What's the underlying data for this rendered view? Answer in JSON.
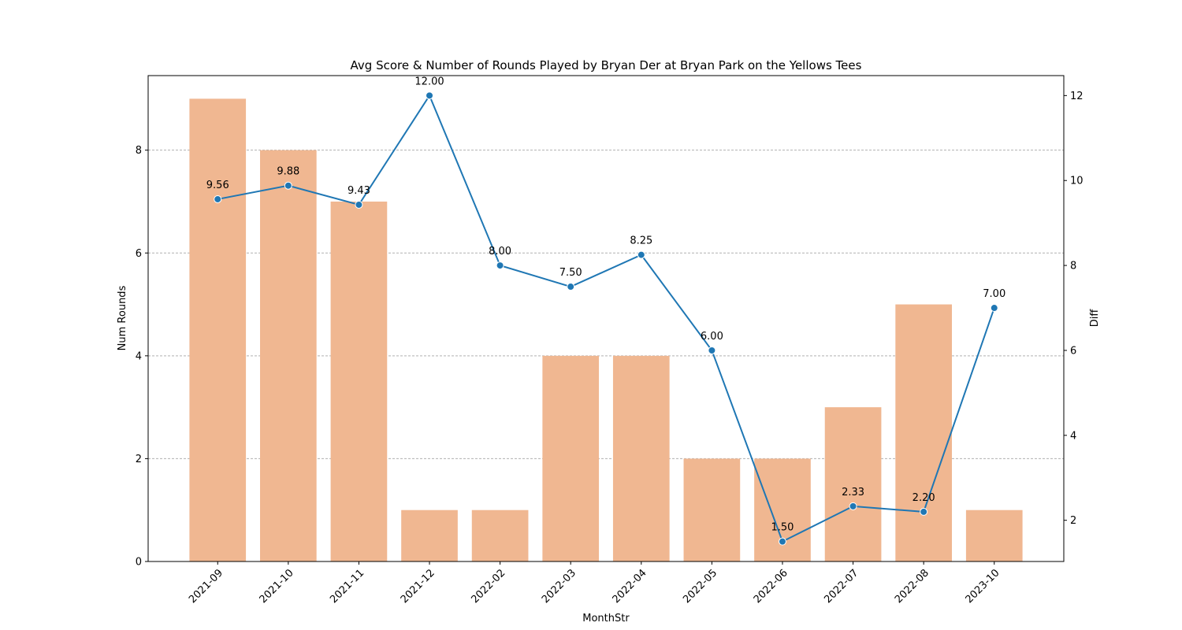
{
  "chart_data": {
    "type": "bar",
    "title": "Avg Score & Number of Rounds Played by Bryan Der at Bryan Park on the Yellows Tees",
    "xlabel": "MonthStr",
    "ylabel_left": "Num Rounds",
    "ylabel_right": "Diff",
    "categories": [
      "2021-09",
      "2021-10",
      "2021-11",
      "2021-12",
      "2022-02",
      "2022-03",
      "2022-04",
      "2022-05",
      "2022-06",
      "2022-07",
      "2022-08",
      "2023-10"
    ],
    "series": [
      {
        "type": "bar",
        "axis": "left",
        "color": "#f0b791",
        "values": [
          9,
          8,
          7,
          1,
          1,
          4,
          4,
          2,
          2,
          3,
          5,
          1
        ]
      },
      {
        "type": "line",
        "axis": "right",
        "color": "#1f77b4",
        "values": [
          9.56,
          9.88,
          9.43,
          12.0,
          8.0,
          7.5,
          8.25,
          6.0,
          1.5,
          2.33,
          2.2,
          7.0
        ],
        "labels": [
          "9.56",
          "9.88",
          "9.43",
          "12.00",
          "8.00",
          "7.50",
          "8.25",
          "6.00",
          "1.50",
          "2.33",
          "2.20",
          "7.00"
        ]
      }
    ],
    "ylim_left": [
      0,
      9.45
    ],
    "yticks_left": [
      0,
      2,
      4,
      6,
      8
    ],
    "ylim_right": [
      1.03,
      12.47
    ],
    "yticks_right": [
      2,
      4,
      6,
      8,
      10,
      12
    ],
    "grid": "horizontal dashed"
  }
}
